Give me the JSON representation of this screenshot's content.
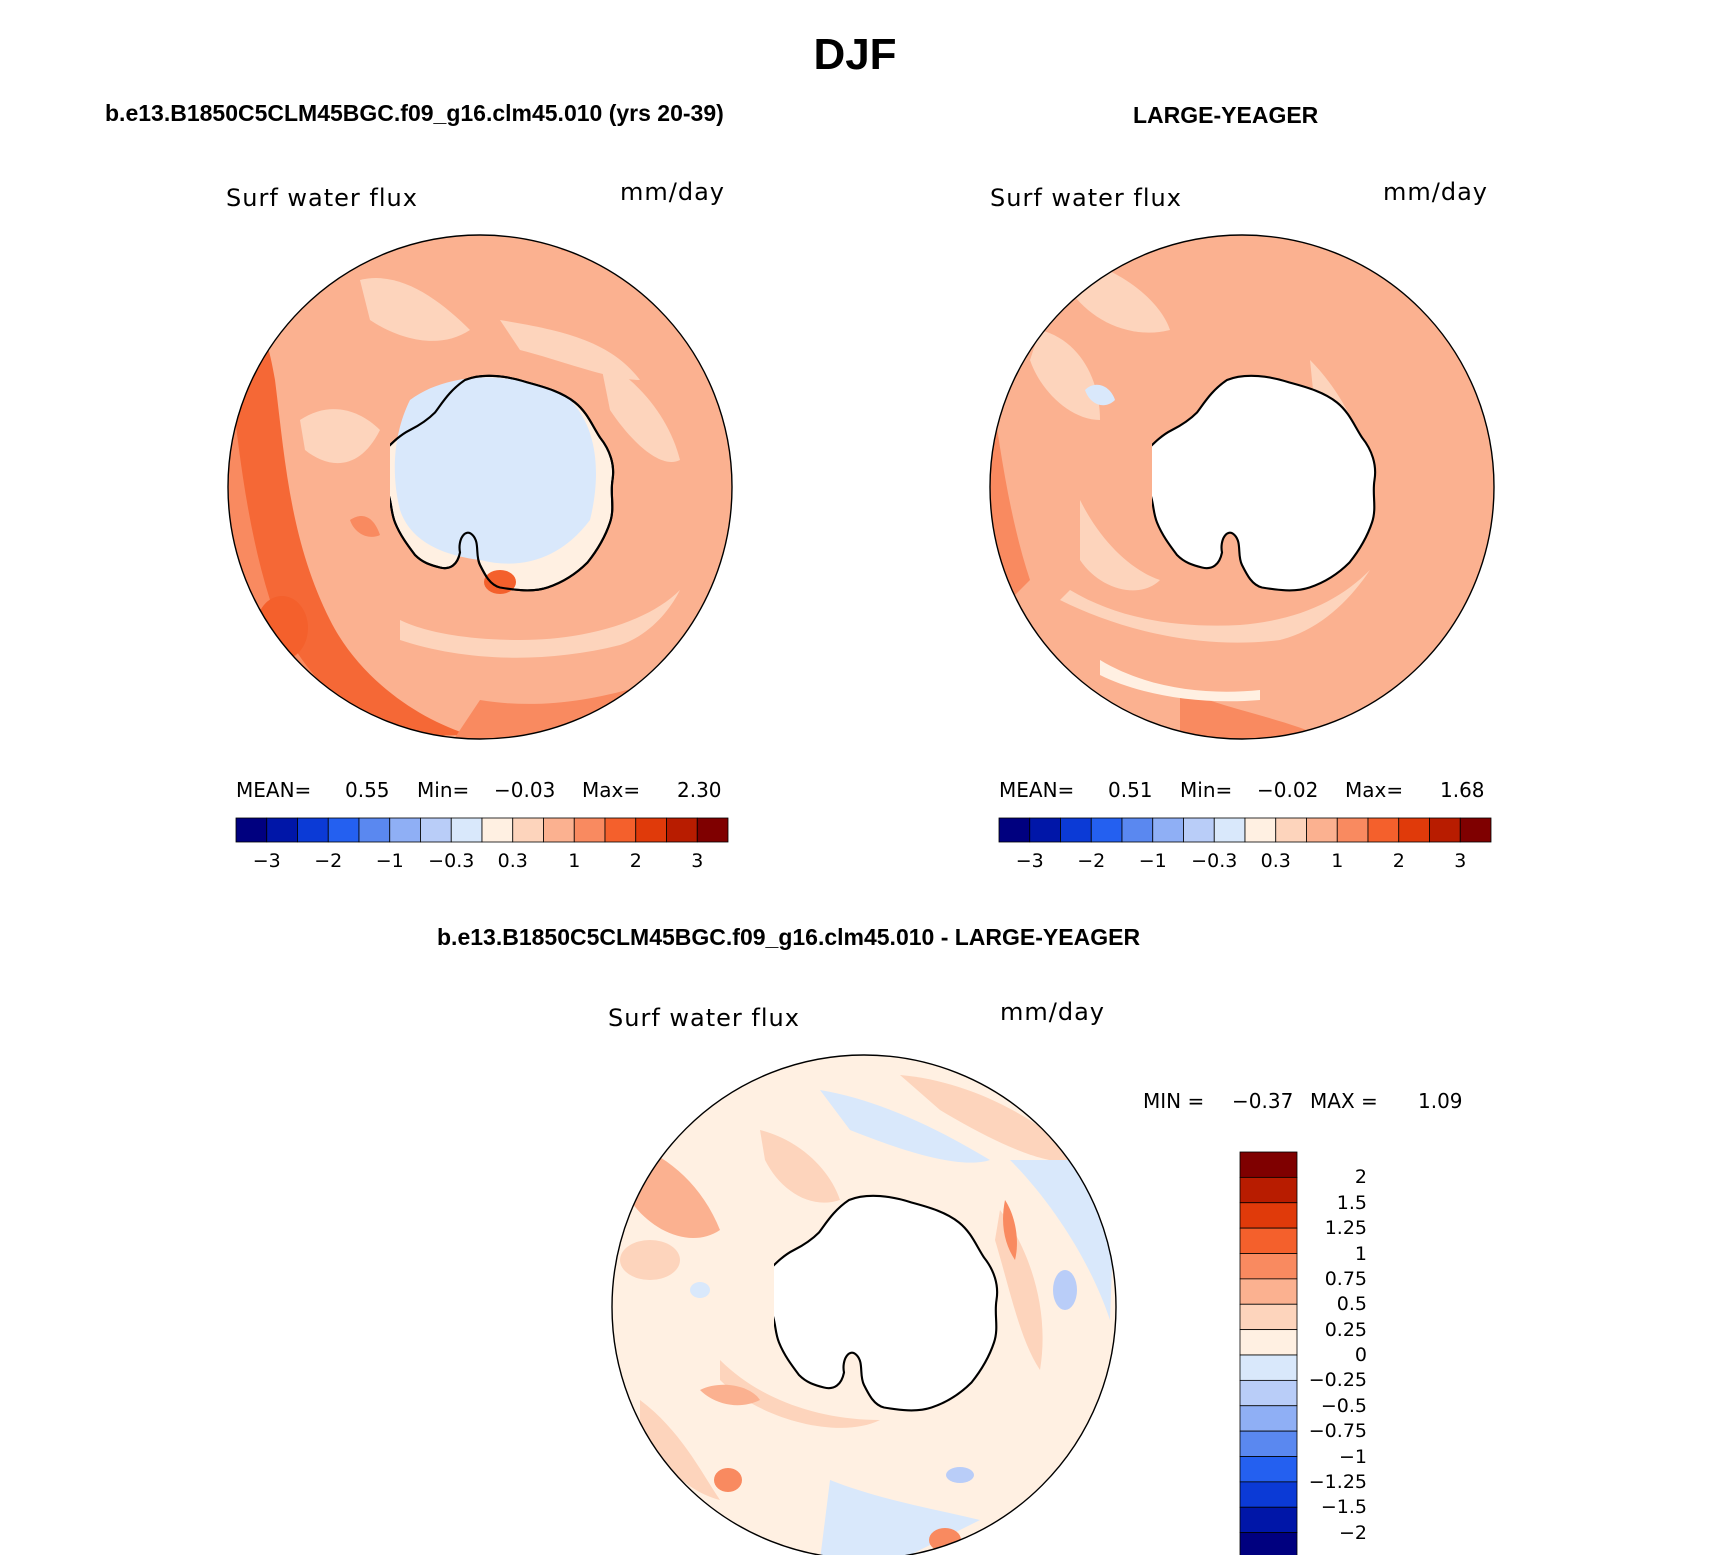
{
  "title": "DJF",
  "panels": [
    {
      "id": "model",
      "title": "b.e13.B1850C5CLM45BGC.f09_g16.clm45.010 (yrs 20-39)",
      "variable": "Surf water flux",
      "units": "mm/day",
      "stats": {
        "mean_label": "MEAN=",
        "mean": "0.55",
        "min_label": "Min=",
        "min": "−0.03",
        "max_label": "Max=",
        "max": "2.30"
      }
    },
    {
      "id": "obs",
      "title": "LARGE-YEAGER",
      "variable": "Surf water flux",
      "units": "mm/day",
      "stats": {
        "mean_label": "MEAN=",
        "mean": "0.51",
        "min_label": "Min=",
        "min": "−0.02",
        "max_label": "Max=",
        "max": "1.68"
      }
    },
    {
      "id": "diff",
      "title": "b.e13.B1850C5CLM45BGC.f09_g16.clm45.010 - LARGE-YEAGER",
      "variable": "Surf water flux",
      "units": "mm/day",
      "stats": {
        "min_label": "MIN =",
        "min": "−0.37",
        "max_label": "MAX =",
        "max": "1.09"
      }
    }
  ],
  "colorbar_main": {
    "colors": [
      "#00007f",
      "#0016a8",
      "#0b3ad6",
      "#2460f0",
      "#5a88f0",
      "#8faff5",
      "#b9cdf8",
      "#d9e8fb",
      "#fff0e2",
      "#fdd4bc",
      "#fbb190",
      "#f98a60",
      "#f4602c",
      "#e03a0a",
      "#b81c00",
      "#7f0000"
    ],
    "tick_labels": [
      "−3",
      "−2",
      "−1",
      "−0.3",
      "0.3",
      "1",
      "2",
      "3"
    ]
  },
  "colorbar_diff": {
    "colors": [
      "#7f0000",
      "#b81c00",
      "#e03a0a",
      "#f4602c",
      "#f98a60",
      "#fbb190",
      "#fdd4bc",
      "#fff0e2",
      "#d9e8fb",
      "#b9cdf8",
      "#8faff5",
      "#5a88f0",
      "#2460f0",
      "#0b3ad6",
      "#0016a8",
      "#00007f"
    ],
    "tick_labels": [
      "2",
      "1.5",
      "1.25",
      "1",
      "0.75",
      "0.5",
      "0.25",
      "0",
      "−0.25",
      "−0.5",
      "−0.75",
      "−1",
      "−1.25",
      "−1.5",
      "−2"
    ]
  },
  "colors": {
    "map_outline": "#000000",
    "land_fill": "#ffffff"
  }
}
